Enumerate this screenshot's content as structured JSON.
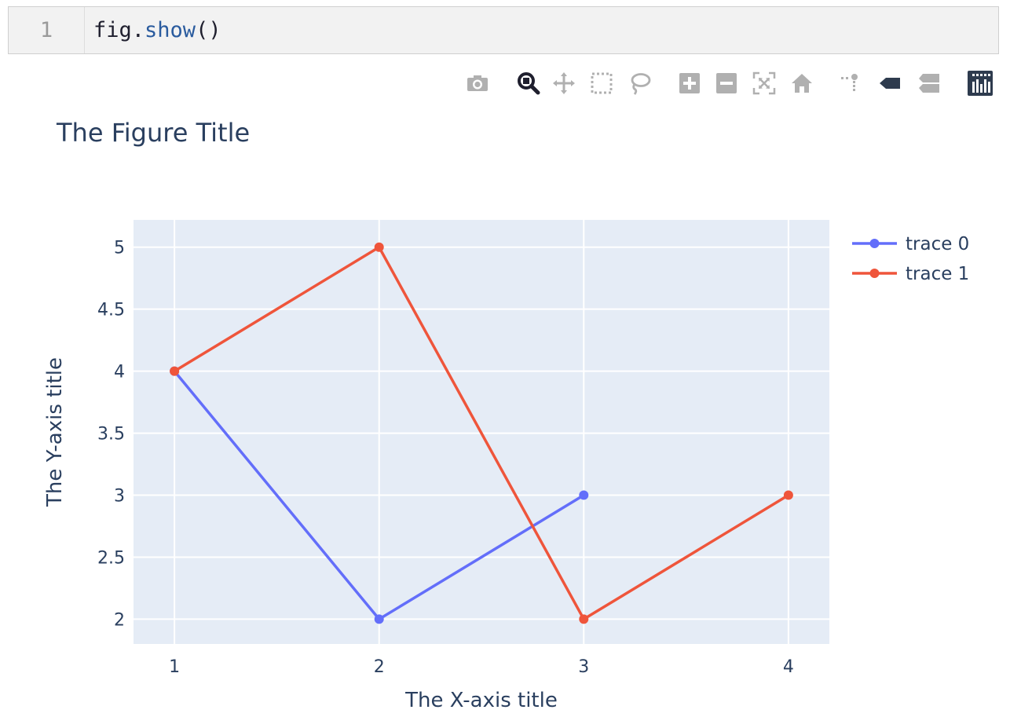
{
  "code": {
    "line_number": "1",
    "object": "fig.",
    "method": "show",
    "parens": "()"
  },
  "modebar": {
    "buttons": [
      {
        "name": "camera-icon",
        "active": false
      },
      {
        "name": "zoom-icon",
        "active": true
      },
      {
        "name": "pan-icon",
        "active": false
      },
      {
        "name": "box-select-icon",
        "active": false
      },
      {
        "name": "lasso-select-icon",
        "active": false
      },
      {
        "name": "zoom-in-icon",
        "active": false
      },
      {
        "name": "zoom-out-icon",
        "active": false
      },
      {
        "name": "autoscale-icon",
        "active": false
      },
      {
        "name": "reset-axes-icon",
        "active": false
      },
      {
        "name": "toggle-spike-lines-icon",
        "active": false
      },
      {
        "name": "hover-closest-icon",
        "active": false
      },
      {
        "name": "hover-compare-icon",
        "active": false
      },
      {
        "name": "plotly-logo-icon",
        "active": false
      }
    ]
  },
  "chart_data": {
    "type": "line",
    "title": "The Figure Title",
    "xlabel": "The X-axis title",
    "ylabel": "The Y-axis title",
    "xlim": [
      0.8,
      4.2
    ],
    "ylim": [
      1.8,
      5.22
    ],
    "xticks": [
      1,
      2,
      3,
      4
    ],
    "yticks": [
      2,
      2.5,
      3,
      3.5,
      4,
      4.5,
      5
    ],
    "grid": true,
    "legend_position": "top-right",
    "colors": {
      "plot_bg": "#e5ecf6",
      "grid": "#ffffff",
      "text": "#2a3f5f"
    },
    "series": [
      {
        "name": "trace 0",
        "color": "#636efa",
        "mode": "lines+markers",
        "x": [
          1,
          2,
          3
        ],
        "y": [
          4,
          2,
          3
        ]
      },
      {
        "name": "trace 1",
        "color": "#ef553b",
        "mode": "lines+markers",
        "x": [
          1,
          2,
          3,
          4
        ],
        "y": [
          4,
          5,
          2,
          3
        ]
      }
    ]
  }
}
